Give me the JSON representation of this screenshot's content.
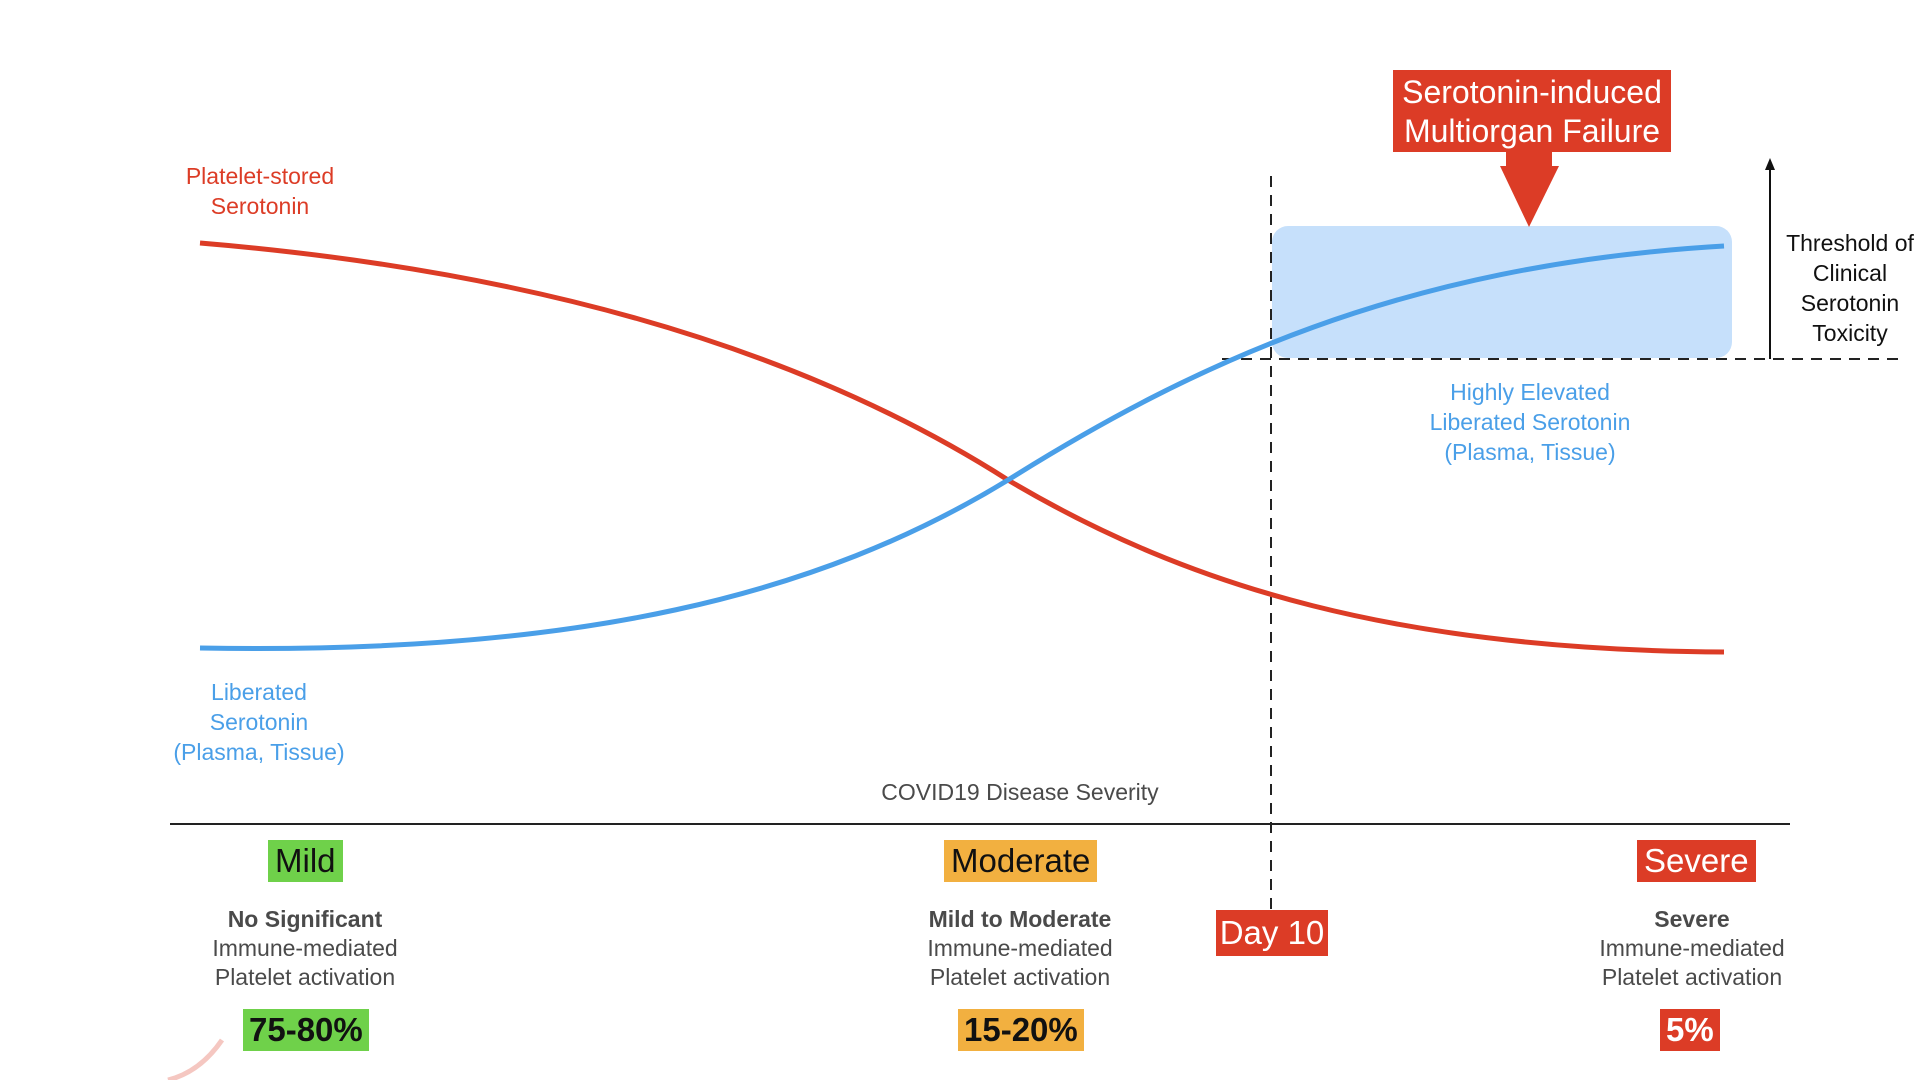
{
  "labels": {
    "platelet_stored": [
      "Platelet-stored",
      "Serotonin"
    ],
    "liberated": [
      "Liberated",
      "Serotonin",
      "(Plasma, Tissue)"
    ],
    "highly_elevated": [
      "Highly Elevated",
      "Liberated Serotonin",
      "(Plasma, Tissue)"
    ],
    "threshold": [
      "Threshold of",
      "Clinical",
      "Serotonin",
      "Toxicity"
    ],
    "callout": [
      "Serotonin-induced",
      "Multiorgan Failure"
    ],
    "axis": "COVID19 Disease Severity",
    "day_marker": "Day 10"
  },
  "severity_levels": [
    {
      "tag": "Mild",
      "desc_bold": "No Significant",
      "desc": [
        "Immune-mediated",
        "Platelet activation"
      ],
      "percent": "75-80%",
      "color": "#6fd14a"
    },
    {
      "tag": "Moderate",
      "desc_bold": "Mild to Moderate",
      "desc": [
        "Immune-mediated",
        "Platelet activation"
      ],
      "percent": "15-20%",
      "color": "#f2b040"
    },
    {
      "tag": "Severe",
      "desc_bold": "Severe",
      "desc": [
        "Immune-mediated",
        "Platelet activation"
      ],
      "percent": "5%",
      "color": "#dc3c26"
    }
  ],
  "colors": {
    "platelet_curve": "#dc3c26",
    "liberated_curve": "#4a9fe8",
    "toxicity_zone": "#c6e0fb",
    "axis_line": "#222222"
  }
}
